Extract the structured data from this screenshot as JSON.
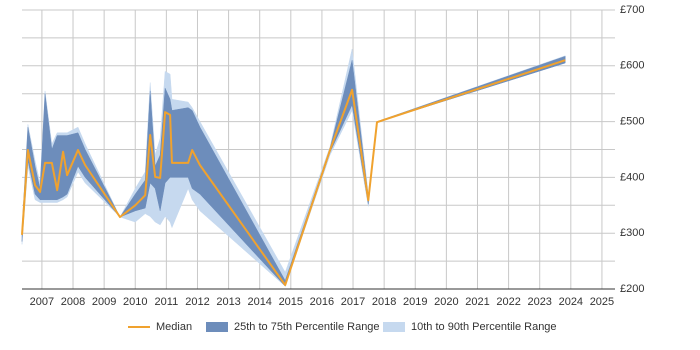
{
  "chart_data": {
    "type": "line",
    "x": [
      2006.36,
      2006.55,
      2006.78,
      2006.94,
      2007.1,
      2007.32,
      2007.49,
      2007.68,
      2007.81,
      2008.16,
      2008.39,
      2009.51,
      2010.0,
      2010.32,
      2010.48,
      2010.64,
      2010.8,
      2010.96,
      2011.12,
      2011.18,
      2011.7,
      2011.83,
      2012.08,
      2014.82,
      2016.26,
      2016.97,
      2017.49,
      2017.77,
      2023.82
    ],
    "series": [
      {
        "name": "10th to 90th Percentile Range",
        "color": "#c6d9ef",
        "low": [
          280,
          420,
          360,
          355,
          355,
          355,
          355,
          360,
          365,
          410,
          390,
          329,
          320,
          335,
          330,
          320,
          315,
          330,
          320,
          310,
          380,
          360,
          340,
          205,
          440,
          520,
          348,
          499,
          605
        ],
        "high": [
          310,
          495,
          430,
          390,
          555,
          460,
          480,
          480,
          480,
          490,
          460,
          329,
          380,
          410,
          570,
          440,
          470,
          590,
          585,
          540,
          535,
          525,
          500,
          230,
          455,
          630,
          370,
          500,
          618
        ]
      },
      {
        "name": "25th to 75th Percentile Range",
        "color": "#6d8dbb",
        "low": [
          285,
          430,
          370,
          360,
          360,
          360,
          360,
          365,
          370,
          420,
          400,
          329,
          340,
          345,
          390,
          380,
          340,
          390,
          400,
          400,
          400,
          380,
          370,
          205,
          445,
          530,
          352,
          499,
          605
        ],
        "high": [
          305,
          490,
          420,
          380,
          550,
          450,
          475,
          475,
          475,
          480,
          450,
          329,
          370,
          395,
          555,
          420,
          440,
          560,
          540,
          520,
          525,
          520,
          490,
          215,
          452,
          610,
          365,
          500,
          617
        ]
      },
      {
        "name": "Median",
        "color": "#f0a22e",
        "values": [
          297,
          449,
          386,
          374,
          426,
          426,
          377,
          446,
          404,
          449,
          422,
          329,
          350,
          368,
          476,
          401,
          399,
          517,
          512,
          426,
          426,
          449,
          422,
          207,
          449,
          557,
          359,
          499,
          610
        ]
      }
    ],
    "legend_order": [
      "Median",
      "25th to 75th Percentile Range",
      "10th to 90th Percentile Range"
    ],
    "xlim": [
      2006.36,
      2025.42
    ],
    "xticks": [
      2007,
      2008,
      2009,
      2010,
      2011,
      2012,
      2013,
      2014,
      2015,
      2016,
      2017,
      2018,
      2019,
      2020,
      2021,
      2022,
      2023,
      2024,
      2025
    ],
    "ylim": [
      200,
      700
    ],
    "yticks": [
      {
        "value": 200,
        "label": "£200"
      },
      {
        "value": 300,
        "label": "£300"
      },
      {
        "value": 400,
        "label": "£400"
      },
      {
        "value": 500,
        "label": "£500"
      },
      {
        "value": 600,
        "label": "£600"
      },
      {
        "value": 700,
        "label": "£700"
      }
    ],
    "y_minor_gridlines": [
      250,
      350,
      450,
      550,
      650
    ],
    "grid": true,
    "legend": "bottom"
  }
}
